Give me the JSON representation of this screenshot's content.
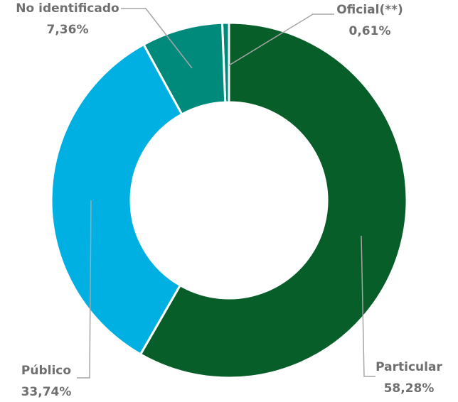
{
  "chart_data": {
    "type": "donut",
    "categories": [
      "Particular",
      "Público",
      "No identificado",
      "Oficial(**)"
    ],
    "values": [
      58.28,
      33.74,
      7.36,
      0.61
    ],
    "value_labels": [
      "58,28%",
      "33,74%",
      "7,36%",
      "0,61%"
    ],
    "colors": [
      "#075e29",
      "#00b0e3",
      "#008a7b",
      "#008a7b"
    ]
  }
}
